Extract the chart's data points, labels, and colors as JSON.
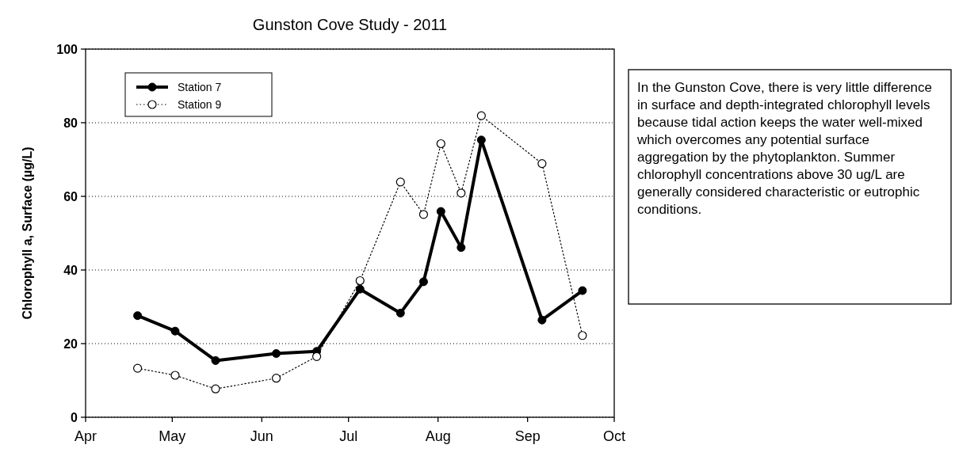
{
  "chart_data": {
    "type": "line",
    "title": "Gunston Cove Study - 2011",
    "ylabel": "Chlorophyll a, Surface (µg/L)",
    "x": [
      "2011-04-19",
      "2011-05-02",
      "2011-05-16",
      "2011-06-06",
      "2011-06-20",
      "2011-07-05",
      "2011-07-19",
      "2011-07-27",
      "2011-08-02",
      "2011-08-09",
      "2011-08-16",
      "2011-09-06",
      "2011-09-20"
    ],
    "series": [
      {
        "name": "Station 7",
        "color": "#000000",
        "line_style": "solid",
        "values": [
          27.6,
          23.4,
          15.4,
          17.3,
          17.9,
          34.8,
          28.3,
          36.8,
          55.9,
          46.1,
          75.3,
          26.4,
          34.4
        ]
      },
      {
        "name": "Station 9",
        "color": "#000000",
        "line_style": "dotted",
        "values": [
          13.3,
          11.4,
          7.7,
          10.6,
          16.5,
          37.1,
          63.9,
          55.1,
          74.3,
          60.9,
          81.9,
          68.9,
          22.2
        ]
      }
    ],
    "xlim": [
      "2011-04-01",
      "2011-10-01"
    ],
    "xticks": [
      {
        "value": "2011-04-01",
        "label": "Apr"
      },
      {
        "value": "2011-05-01",
        "label": "May"
      },
      {
        "value": "2011-06-01",
        "label": "Jun"
      },
      {
        "value": "2011-07-01",
        "label": "Jul"
      },
      {
        "value": "2011-08-01",
        "label": "Aug"
      },
      {
        "value": "2011-09-01",
        "label": "Sep"
      },
      {
        "value": "2011-10-01",
        "label": "Oct"
      }
    ],
    "ylim": [
      0,
      100
    ],
    "yticks": [
      0,
      20,
      40,
      60,
      80,
      100
    ],
    "grid": "y",
    "legend": "top left",
    "marker": "circle",
    "annotations": [
      "In the Gunston Cove, there is very little difference in surface and depth-integrated chlorophyll levels because tidal action keeps the water well-mixed which overcomes any potential surface aggregation by the phytoplankton. Summer chlorophyll concentrations above 30 ug/L are generally considered characteristic or eutrophic conditions."
    ]
  }
}
